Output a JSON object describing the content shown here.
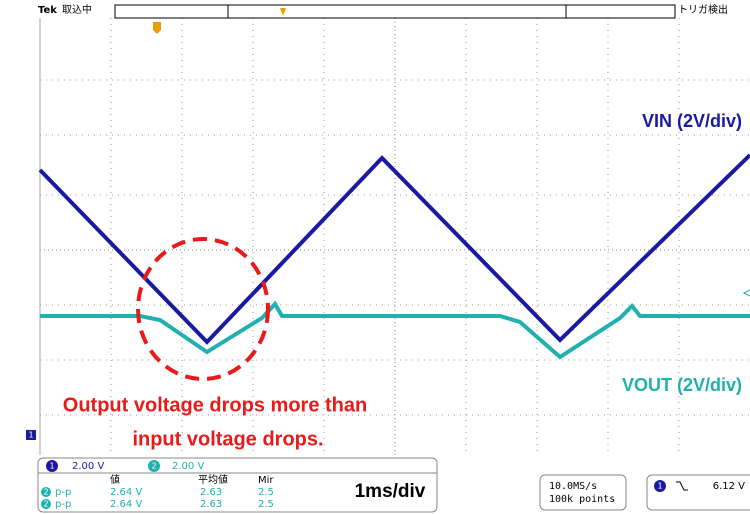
{
  "header": {
    "brand": "Tek",
    "status": "取込中",
    "trigger": "トリガ検出"
  },
  "labels": {
    "vin": "VIN (2V/div)",
    "vout": "VOUT (2V/div)",
    "note_line1": "Output voltage drops more than",
    "note_line2": "input voltage drops.",
    "timebase": "1ms/div"
  },
  "channels": [
    {
      "id": "1",
      "scale": "2.00 V"
    },
    {
      "id": "2",
      "scale": "2.00 V"
    }
  ],
  "measurements": {
    "headers": [
      "値",
      "平均値",
      "Mir"
    ],
    "rows": [
      {
        "ch": "2",
        "type": "p-p",
        "value": "2.64 V",
        "mean": "2.63",
        "min": "2.5"
      },
      {
        "ch": "2",
        "type": "p-p",
        "value": "2.64 V",
        "mean": "2.63",
        "min": "2.5"
      }
    ]
  },
  "acquisition": {
    "rate": "10.0MS/s",
    "points": "100k points"
  },
  "trigger_readout": {
    "ch": "1",
    "level": "6.12 V"
  },
  "markers": {
    "ch1": "1"
  }
}
